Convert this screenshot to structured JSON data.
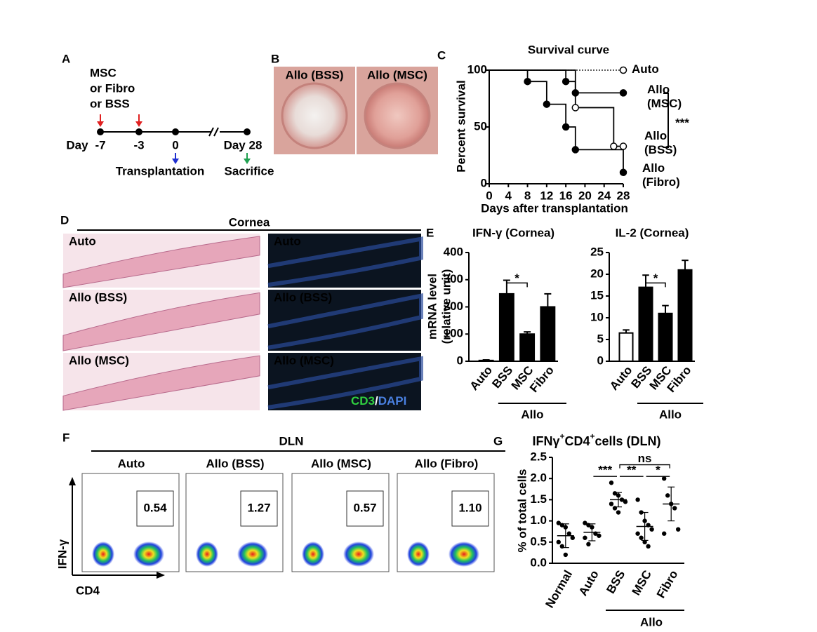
{
  "panel_labels": [
    "A",
    "B",
    "C",
    "D",
    "E",
    "F",
    "G"
  ],
  "timeline": {
    "treatment": [
      "MSC",
      "or Fibro",
      "or BSS"
    ],
    "day_label": "Day",
    "days": [
      "-7",
      "-3",
      "0"
    ],
    "end_day": "Day 28",
    "transplant": "Transplantation",
    "sacrifice": "Sacrifice"
  },
  "photos": {
    "labels": [
      "Allo (BSS)",
      "Allo (MSC)"
    ]
  },
  "histology": {
    "title": "Cornea",
    "he_labels": [
      "Auto",
      "Allo (BSS)",
      "Allo (MSC)"
    ],
    "if_labels": [
      "Auto",
      "Allo (BSS)",
      "Allo (MSC)"
    ],
    "stain": [
      "CD3",
      "/",
      "DAPI"
    ]
  },
  "flow": {
    "title": "DLN",
    "panels": [
      "Auto",
      "Allo (BSS)",
      "Allo (MSC)",
      "Allo (Fibro)"
    ],
    "gates": [
      "0.54",
      "1.27",
      "0.57",
      "1.10"
    ],
    "ylabel": "IFN-γ",
    "xlabel": "CD4"
  },
  "chart_data": [
    {
      "type": "step",
      "title": "Survival curve",
      "xlabel": "Days after transplantation",
      "ylabel": "Percent survival",
      "xlim": [
        0,
        28
      ],
      "xticks": [
        0,
        4,
        8,
        12,
        16,
        20,
        24,
        28
      ],
      "ylim": [
        0,
        100
      ],
      "yticks": [
        0,
        50,
        100
      ],
      "series": [
        {
          "name": "Auto",
          "color": "#000000",
          "dash": true,
          "marker": "open",
          "x": [
            0,
            28
          ],
          "values": [
            100,
            100
          ]
        },
        {
          "name": "Allo (MSC)",
          "color": "#000000",
          "dash": false,
          "marker": "filled",
          "x": [
            0,
            16,
            18,
            28
          ],
          "values": [
            100,
            90,
            80,
            80
          ]
        },
        {
          "name": "Allo (BSS)",
          "color": "#000000",
          "dash": false,
          "marker": "open",
          "x": [
            0,
            18,
            26,
            28
          ],
          "values": [
            100,
            67,
            33,
            33
          ]
        },
        {
          "name": "Allo (Fibro)",
          "color": "#000000",
          "dash": false,
          "marker": "filled",
          "x": [
            0,
            8,
            12,
            16,
            18,
            28
          ],
          "values": [
            100,
            90,
            70,
            50,
            30,
            10
          ]
        }
      ],
      "annotation": "***"
    },
    {
      "type": "bar",
      "title": "IFN-γ (Cornea)",
      "ylabel": [
        "mRNA level",
        "(relative unit)"
      ],
      "categories": [
        "Auto",
        "BSS",
        "MSC",
        "Fibro"
      ],
      "group": "Allo",
      "values": [
        3,
        248,
        100,
        200
      ],
      "errors": [
        2,
        50,
        8,
        48
      ],
      "colors": [
        "#ffffff",
        "#000000",
        "#000000",
        "#000000"
      ],
      "ylim": [
        0,
        400
      ],
      "yticks": [
        0,
        100,
        200,
        300,
        400
      ],
      "annotation": "*"
    },
    {
      "type": "bar",
      "title": "IL-2 (Cornea)",
      "categories": [
        "Auto",
        "BSS",
        "MSC",
        "Fibro"
      ],
      "group": "Allo",
      "values": [
        6.5,
        17,
        11,
        21
      ],
      "errors": [
        0.7,
        2.8,
        1.8,
        2.2
      ],
      "colors": [
        "#ffffff",
        "#000000",
        "#000000",
        "#000000"
      ],
      "ylim": [
        0,
        25
      ],
      "yticks": [
        0,
        5,
        10,
        15,
        20,
        25
      ],
      "annotation": "*"
    },
    {
      "type": "dot",
      "title": [
        "IFNγ",
        "+",
        "CD4",
        "+",
        "cells (DLN)"
      ],
      "ylabel": "% of total cells",
      "categories": [
        "Normal",
        "Auto",
        "BSS",
        "MSC",
        "Fibro"
      ],
      "group": "Allo",
      "values": [
        [
          0.95,
          0.9,
          0.85,
          0.7,
          0.6,
          0.5,
          0.4,
          0.2
        ],
        [
          0.95,
          0.9,
          0.85,
          0.7,
          0.65,
          0.6,
          0.45
        ],
        [
          1.9,
          1.65,
          1.6,
          1.5,
          1.45,
          1.4,
          1.3,
          1.2
        ],
        [
          1.5,
          1.2,
          1.0,
          0.9,
          0.8,
          0.7,
          0.6,
          0.5,
          0.4
        ],
        [
          2.0,
          1.6,
          1.4,
          1.3,
          0.8,
          0.7
        ]
      ],
      "means": [
        0.65,
        0.73,
        1.5,
        0.87,
        1.4
      ],
      "sds": [
        0.28,
        0.2,
        0.17,
        0.33,
        0.4
      ],
      "ylim": [
        0,
        2.5
      ],
      "yticks": [
        {
          "value": 0,
          "label": "0.0"
        },
        0.5,
        {
          "value": 1,
          "label": "1.0"
        },
        1.5,
        {
          "value": 2,
          "label": "2.0"
        },
        2.5
      ],
      "annotations": [
        "***",
        "**",
        "*",
        "ns"
      ]
    }
  ]
}
